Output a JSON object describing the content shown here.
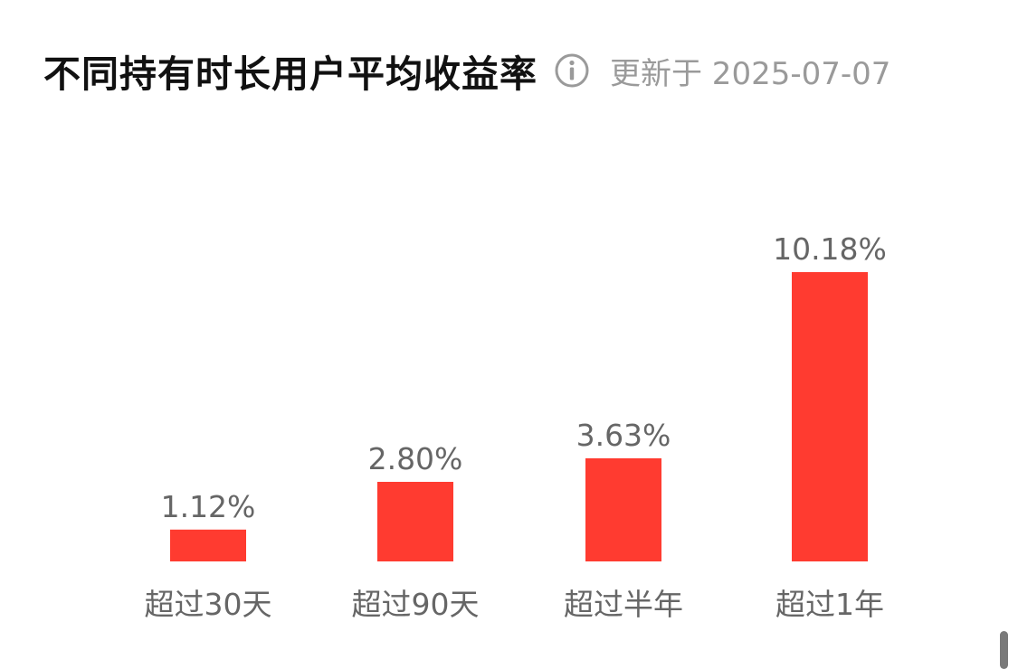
{
  "header": {
    "title": "不同持有时长用户平均收益率",
    "updated_text": "更新于 2025-07-07",
    "info_icon": "info-circle-icon"
  },
  "chart_data": {
    "type": "bar",
    "title": "不同持有时长用户平均收益率",
    "categories": [
      "超过30天",
      "超过90天",
      "超过半年",
      "超过1年"
    ],
    "values": [
      1.12,
      2.8,
      3.63,
      10.18
    ],
    "value_labels": [
      "1.12%",
      "2.80%",
      "3.63%",
      "10.18%"
    ],
    "unit": "%",
    "ylim": [
      0,
      10.18
    ],
    "grid": false,
    "legend": "none",
    "bar_color": "#ff3b30"
  }
}
